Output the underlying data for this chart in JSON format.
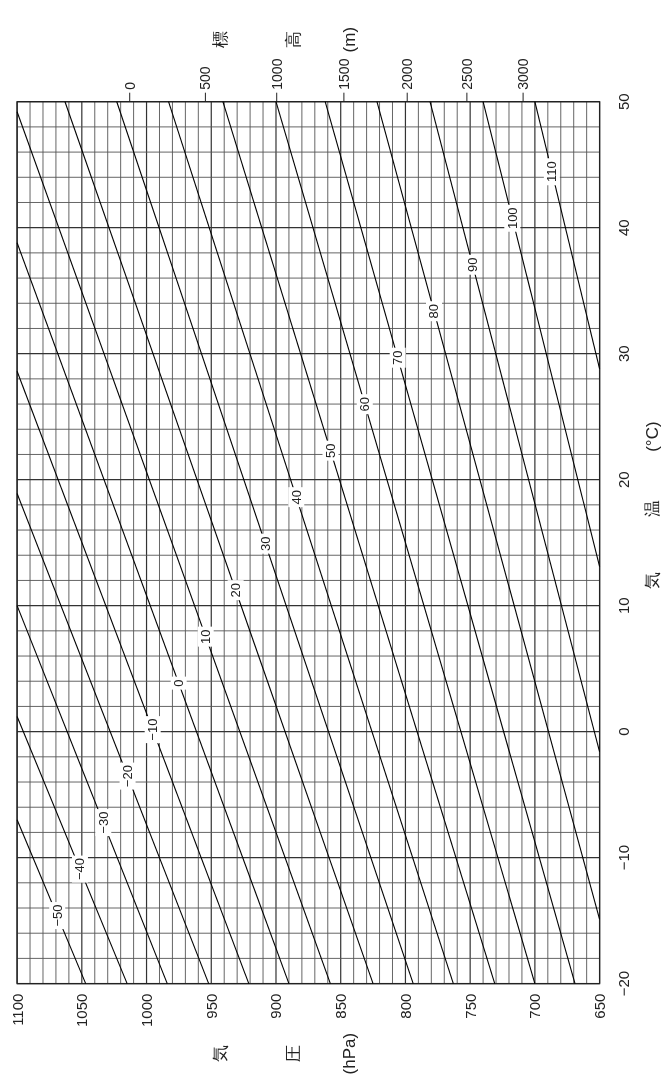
{
  "chart_data": {
    "type": "line",
    "xlabel": "気圧(hPa)",
    "ylabel": "気 温 (°C)",
    "x2label": "標高(m)",
    "xlim": [
      1100,
      650
    ],
    "ylim": [
      -20,
      50
    ],
    "grid": true,
    "annotations": [
      "0",
      "500",
      "1000",
      "1500",
      "2000",
      "2500",
      "3000"
    ],
    "yticks": [
      -20,
      {
        "value": -18,
        "label": null
      },
      {
        "value": -16,
        "label": null
      },
      {
        "value": -14,
        "label": null
      },
      {
        "value": -12,
        "label": null
      },
      -10,
      {
        "value": -8,
        "label": null
      },
      {
        "value": -6,
        "label": null
      },
      {
        "value": -4,
        "label": null
      },
      {
        "value": -2,
        "label": null
      },
      0,
      {
        "value": 2,
        "label": null
      },
      {
        "value": 4,
        "label": null
      },
      {
        "value": 6,
        "label": null
      },
      {
        "value": 8,
        "label": null
      },
      10,
      {
        "value": 12,
        "label": null
      },
      {
        "value": 14,
        "label": null
      },
      {
        "value": 16,
        "label": null
      },
      {
        "value": 18,
        "label": null
      },
      20,
      {
        "value": 22,
        "label": null
      },
      {
        "value": 24,
        "label": null
      },
      {
        "value": 26,
        "label": null
      },
      {
        "value": 28,
        "label": null
      },
      30,
      {
        "value": 32,
        "label": null
      },
      {
        "value": 34,
        "label": null
      },
      {
        "value": 36,
        "label": null
      },
      {
        "value": 38,
        "label": null
      },
      40,
      {
        "value": 42,
        "label": null
      },
      {
        "value": 44,
        "label": null
      },
      {
        "value": 46,
        "label": null
      },
      {
        "value": 48,
        "label": null
      },
      50
    ],
    "xticks": [
      1100,
      {
        "value": 1090,
        "label": null
      },
      {
        "value": 1080,
        "label": null
      },
      {
        "value": 1070,
        "label": null
      },
      {
        "value": 1060,
        "label": null
      },
      1050,
      {
        "value": 1040,
        "label": null
      },
      {
        "value": 1030,
        "label": null
      },
      {
        "value": 1020,
        "label": null
      },
      {
        "value": 1010,
        "label": null
      },
      1000,
      {
        "value": 990,
        "label": null
      },
      {
        "value": 980,
        "label": null
      },
      {
        "value": 970,
        "label": null
      },
      {
        "value": 960,
        "label": null
      },
      950,
      {
        "value": 940,
        "label": null
      },
      {
        "value": 930,
        "label": null
      },
      {
        "value": 920,
        "label": null
      },
      {
        "value": 910,
        "label": null
      },
      900,
      {
        "value": 890,
        "label": null
      },
      {
        "value": 880,
        "label": null
      },
      {
        "value": 870,
        "label": null
      },
      {
        "value": 860,
        "label": null
      },
      850,
      {
        "value": 840,
        "label": null
      },
      {
        "value": 830,
        "label": null
      },
      {
        "value": 820,
        "label": null
      },
      {
        "value": 810,
        "label": null
      },
      800,
      {
        "value": 790,
        "label": null
      },
      {
        "value": 780,
        "label": null
      },
      {
        "value": 770,
        "label": null
      },
      {
        "value": 760,
        "label": null
      },
      750,
      {
        "value": 740,
        "label": null
      },
      {
        "value": 730,
        "label": null
      },
      {
        "value": 720,
        "label": null
      },
      {
        "value": 710,
        "label": null
      },
      700,
      {
        "value": 690,
        "label": null
      },
      {
        "value": 680,
        "label": null
      },
      {
        "value": 670,
        "label": null
      },
      {
        "value": 660,
        "label": null
      },
      650
    ],
    "series": [
      {
        "name": "−50",
        "color": "#000000",
        "x": [
          1047,
          1100
        ],
        "values": [
          -20,
          -7.0
        ]
      },
      {
        "name": "−40",
        "color": "#000000",
        "x": [
          1015,
          1100
        ],
        "values": [
          -20,
          1.2
        ]
      },
      {
        "name": "−30",
        "color": "#000000",
        "x": [
          984,
          1100
        ],
        "values": [
          -20,
          10.0
        ]
      },
      {
        "name": "−20",
        "color": "#000000",
        "x": [
          952,
          1100
        ],
        "values": [
          -20,
          18.9
        ]
      },
      {
        "name": "−10",
        "color": "#000000",
        "x": [
          921,
          1100
        ],
        "values": [
          -20,
          28.6
        ]
      },
      {
        "name": "0",
        "color": "#000000",
        "x": [
          890,
          1100
        ],
        "values": [
          -20,
          38.8
        ]
      },
      {
        "name": "10",
        "color": "#000000",
        "x": [
          858,
          1100
        ],
        "values": [
          -20,
          49.2
        ]
      },
      {
        "name": "20",
        "color": "#000000",
        "x": [
          825,
          1063
        ],
        "values": [
          -20,
          50
        ]
      },
      {
        "name": "30",
        "color": "#000000",
        "x": [
          794,
          1023
        ],
        "values": [
          -20,
          50
        ]
      },
      {
        "name": "40",
        "color": "#000000",
        "x": [
          763,
          983
        ],
        "values": [
          -20,
          50
        ]
      },
      {
        "name": "50",
        "color": "#000000",
        "x": [
          731,
          941
        ],
        "values": [
          -20,
          50
        ]
      },
      {
        "name": "60",
        "color": "#000000",
        "x": [
          700,
          900
        ],
        "values": [
          -20,
          50
        ]
      },
      {
        "name": "70",
        "color": "#000000",
        "x": [
          669,
          862
        ],
        "values": [
          -20,
          50
        ]
      },
      {
        "name": "80",
        "color": "#000000",
        "x": [
          650,
          822
        ],
        "values": [
          -14.9,
          50
        ]
      },
      {
        "name": "90",
        "color": "#000000",
        "x": [
          650,
          781
        ],
        "values": [
          -1.6,
          50
        ]
      },
      {
        "name": "100",
        "color": "#000000",
        "x": [
          650,
          740
        ],
        "values": [
          13.1,
          50
        ]
      },
      {
        "name": "110",
        "color": "#000000",
        "x": [
          650,
          700
        ],
        "values": [
          28.8,
          50
        ]
      }
    ]
  }
}
